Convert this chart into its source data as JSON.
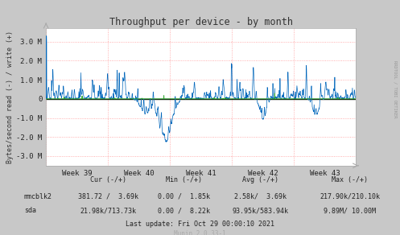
{
  "title": "Throughput per device - by month",
  "ylabel": "Bytes/second read (-) / write (+)",
  "xlabel_ticks": [
    "Week 39",
    "Week 40",
    "Week 41",
    "Week 42",
    "Week 43"
  ],
  "ylim": [
    -3500000,
    3700000
  ],
  "yticks": [
    -3000000,
    -2000000,
    -1000000,
    0,
    1000000,
    2000000,
    3000000
  ],
  "ytick_labels": [
    "-3.0 M",
    "-2.0 M",
    "-1.0 M",
    "0",
    "1.0 M",
    "2.0 M",
    "3.0 M"
  ],
  "bg_color": "#c8c8c8",
  "plot_bg_color": "#ffffff",
  "grid_color": "#ff9999",
  "grid_dot_color": "#aaaacc",
  "line_color_sda": "#0066bb",
  "line_color_mmcblk2": "#33aa33",
  "sidebar_text": "RRDTOOL / TOBI OETIKER",
  "sidebar_color": "#999999",
  "legend": [
    {
      "name": "mmcblk2",
      "color": "#33aa33"
    },
    {
      "name": "sda",
      "color": "#0066bb"
    }
  ],
  "legend_table": {
    "rows": [
      [
        "mmcblk2",
        "381.72 /  3.69k",
        "0.00 /  1.85k",
        "2.58k/  3.69k",
        "217.90k/210.10k"
      ],
      [
        "sda",
        "21.98k/713.73k",
        "0.00 /  8.22k",
        "93.95k/583.94k",
        "9.89M/ 10.00M"
      ]
    ]
  },
  "last_update": "Last update: Fri Oct 29 00:00:10 2021",
  "munin_version": "Munin 2.0.33-1",
  "seed": 12345,
  "n_points": 2000
}
